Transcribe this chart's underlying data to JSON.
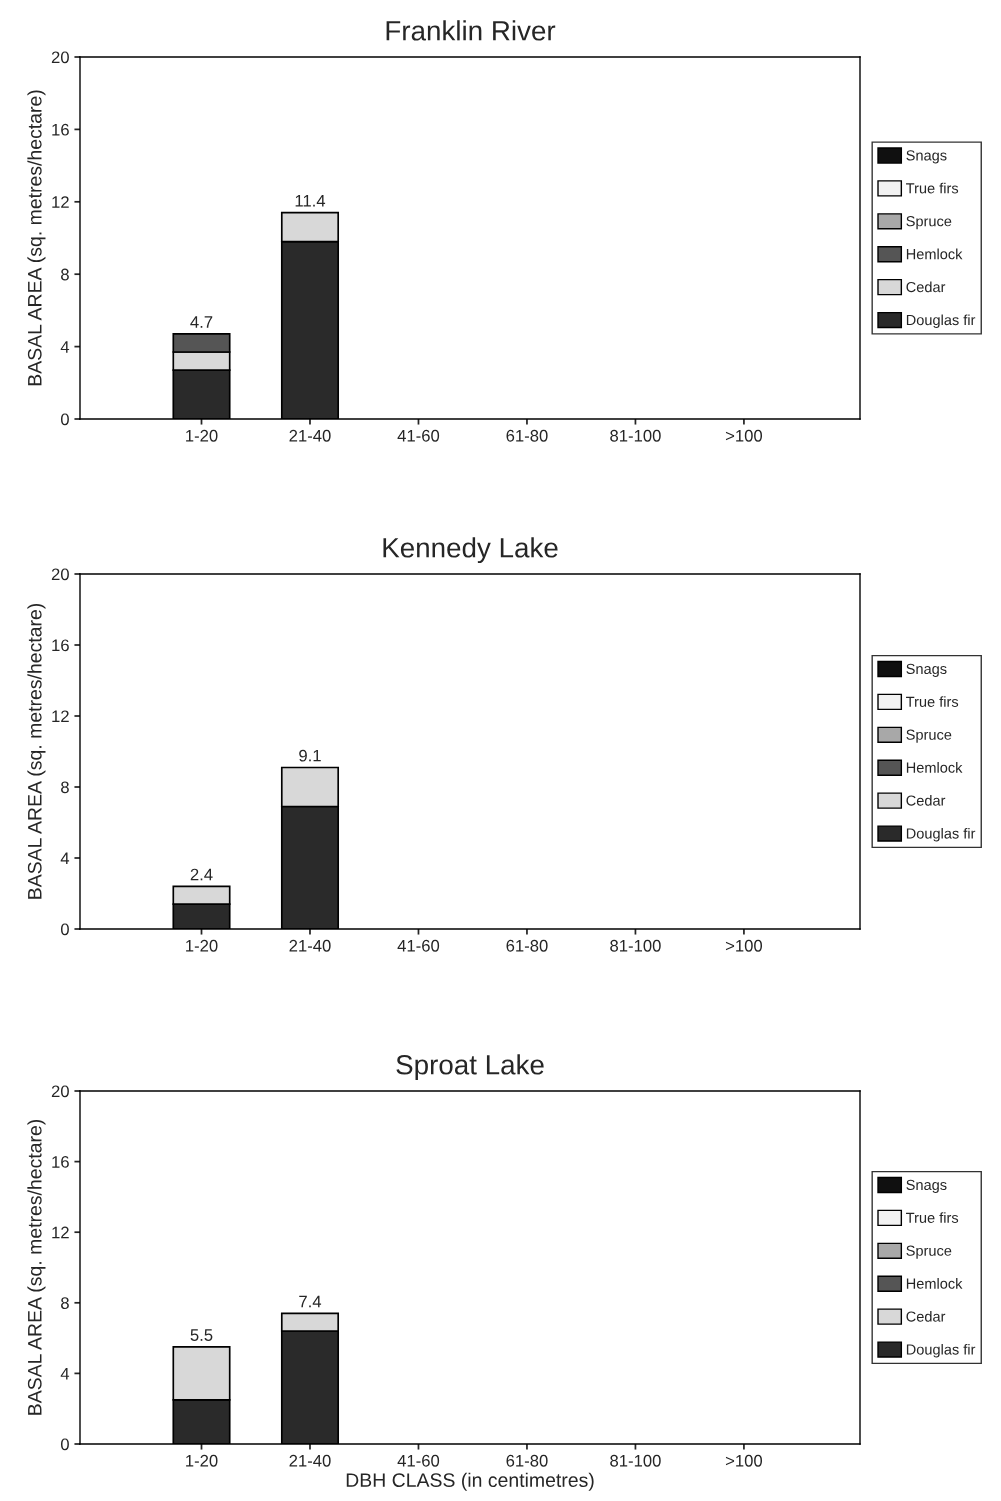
{
  "chart_data": [
    {
      "type": "bar",
      "title": "Franklin River",
      "ylabel": "BASAL AREA (sq. metres/hectare)",
      "categories": [
        "1-20",
        "21-40",
        "41-60",
        "61-80",
        "81-100",
        ">100"
      ],
      "stacked": true,
      "ylim": [
        0,
        20
      ],
      "yticks": [
        0,
        4,
        8,
        12,
        16,
        20
      ],
      "legend": "right",
      "totals": [
        "4.7",
        "11.4",
        null,
        null,
        null,
        null
      ],
      "series": [
        {
          "name": "Douglas fir",
          "color": "#2a2a2a",
          "values": [
            2.7,
            9.8,
            null,
            null,
            null,
            null
          ]
        },
        {
          "name": "Cedar",
          "color": "#d8d8d8",
          "values": [
            1.0,
            1.6,
            null,
            null,
            null,
            null
          ]
        },
        {
          "name": "Hemlock",
          "color": "#555555",
          "values": [
            1.0,
            null,
            null,
            null,
            null,
            null
          ]
        },
        {
          "name": "Spruce",
          "color": "#a8a8a8",
          "values": [
            null,
            null,
            null,
            null,
            null,
            null
          ]
        },
        {
          "name": "True firs",
          "color": "#f2f2f2",
          "values": [
            null,
            null,
            null,
            null,
            null,
            null
          ]
        },
        {
          "name": "Snags",
          "color": "#101010",
          "values": [
            null,
            null,
            null,
            null,
            null,
            null
          ]
        }
      ]
    },
    {
      "type": "bar",
      "title": "Kennedy Lake",
      "ylabel": "BASAL AREA (sq. metres/hectare)",
      "categories": [
        "1-20",
        "21-40",
        "41-60",
        "61-80",
        "81-100",
        ">100"
      ],
      "stacked": true,
      "ylim": [
        0,
        20
      ],
      "yticks": [
        0,
        4,
        8,
        12,
        16,
        20
      ],
      "legend": "right",
      "totals": [
        "2.4",
        "9.1",
        null,
        null,
        null,
        null
      ],
      "series": [
        {
          "name": "Douglas fir",
          "color": "#2a2a2a",
          "values": [
            1.4,
            6.9,
            null,
            null,
            null,
            null
          ]
        },
        {
          "name": "Cedar",
          "color": "#d8d8d8",
          "values": [
            1.0,
            2.2,
            null,
            null,
            null,
            null
          ]
        },
        {
          "name": "Hemlock",
          "color": "#555555",
          "values": [
            null,
            null,
            null,
            null,
            null,
            null
          ]
        },
        {
          "name": "Spruce",
          "color": "#a8a8a8",
          "values": [
            null,
            null,
            null,
            null,
            null,
            null
          ]
        },
        {
          "name": "True firs",
          "color": "#f2f2f2",
          "values": [
            null,
            null,
            null,
            null,
            null,
            null
          ]
        },
        {
          "name": "Snags",
          "color": "#101010",
          "values": [
            null,
            null,
            null,
            null,
            null,
            null
          ]
        }
      ]
    },
    {
      "type": "bar",
      "title": "Sproat Lake",
      "xlabel": "DBH CLASS (in centimetres)",
      "ylabel": "BASAL AREA (sq. metres/hectare)",
      "categories": [
        "1-20",
        "21-40",
        "41-60",
        "61-80",
        "81-100",
        ">100"
      ],
      "stacked": true,
      "ylim": [
        0,
        20
      ],
      "yticks": [
        0,
        4,
        8,
        12,
        16,
        20
      ],
      "legend": "right",
      "totals": [
        "5.5",
        "7.4",
        null,
        null,
        null,
        null
      ],
      "series": [
        {
          "name": "Douglas fir",
          "color": "#2a2a2a",
          "values": [
            2.5,
            6.4,
            null,
            null,
            null,
            null
          ]
        },
        {
          "name": "Cedar",
          "color": "#d8d8d8",
          "values": [
            3.0,
            1.0,
            null,
            null,
            null,
            null
          ]
        },
        {
          "name": "Hemlock",
          "color": "#555555",
          "values": [
            null,
            null,
            null,
            null,
            null,
            null
          ]
        },
        {
          "name": "Spruce",
          "color": "#a8a8a8",
          "values": [
            null,
            null,
            null,
            null,
            null,
            null
          ]
        },
        {
          "name": "True firs",
          "color": "#f2f2f2",
          "values": [
            null,
            null,
            null,
            null,
            null,
            null
          ]
        },
        {
          "name": "Snags",
          "color": "#101010",
          "values": [
            null,
            null,
            null,
            null,
            null,
            null
          ]
        }
      ]
    }
  ]
}
